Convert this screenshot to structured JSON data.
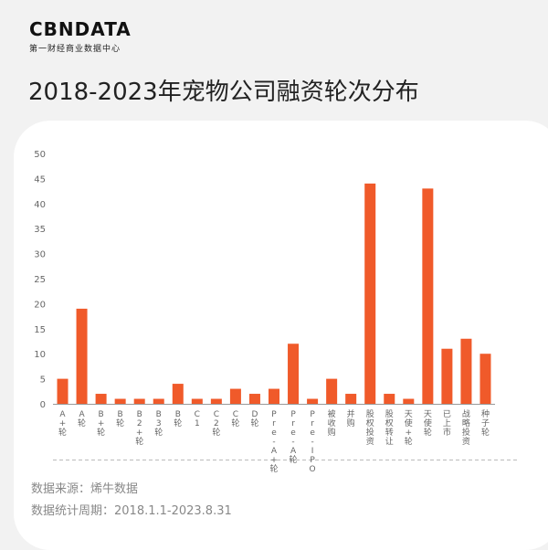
{
  "brand": {
    "logo_text": "CBNDATA",
    "logo_subtitle": "第一财经商业数据中心"
  },
  "page_title": "2018-2023年宠物公司融资轮次分布",
  "footer": {
    "source": "数据来源：烯牛数据",
    "period": "数据统计周期：2018.1.1-2023.8.31"
  },
  "colors": {
    "bar": "#f05a2a",
    "axis": "#999999",
    "tick": "#666666"
  },
  "chart_data": {
    "type": "bar",
    "title": "",
    "xlabel": "",
    "ylabel": "",
    "ylim": [
      0,
      50
    ],
    "yticks": [
      0,
      5,
      10,
      15,
      20,
      25,
      30,
      35,
      40,
      45,
      50
    ],
    "grid": false,
    "categories": [
      "A+轮",
      "A轮",
      "B+轮",
      "B轮",
      "B2+轮",
      "B3轮",
      "B轮",
      "C1",
      "C2轮",
      "C轮",
      "D轮",
      "Pre-A+轮",
      "Pre-A轮",
      "Pre-IPO",
      "被收购",
      "并购",
      "股权投资",
      "股权转让",
      "天使+轮",
      "天使轮",
      "已上市",
      "战略投资",
      "种子轮"
    ],
    "values": [
      5,
      19,
      2,
      1,
      1,
      1,
      4,
      1,
      1,
      3,
      2,
      3,
      12,
      1,
      5,
      2,
      44,
      2,
      1,
      43,
      11,
      13,
      10
    ]
  }
}
